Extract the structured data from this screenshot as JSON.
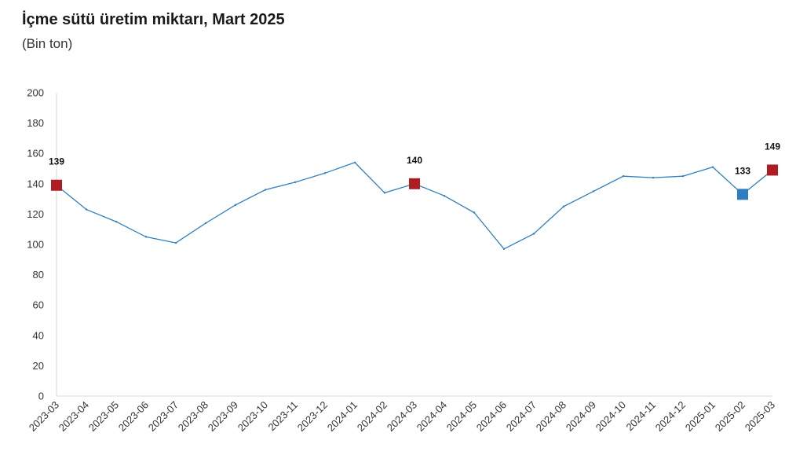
{
  "chart_data": {
    "type": "line",
    "title": "İçme sütü üretim miktarı, Mart 2025",
    "subtitle": "(Bin ton)",
    "categories": [
      "2023-03",
      "2023-04",
      "2023-05",
      "2023-06",
      "2023-07",
      "2023-08",
      "2023-09",
      "2023-10",
      "2023-11",
      "2023-12",
      "2024-01",
      "2024-02",
      "2024-03",
      "2024-04",
      "2024-05",
      "2024-06",
      "2024-07",
      "2024-08",
      "2024-09",
      "2024-10",
      "2024-11",
      "2024-12",
      "2025-01",
      "2025-02",
      "2025-03"
    ],
    "series": [
      {
        "values": [
          139,
          123,
          115,
          105,
          101,
          114,
          126,
          136,
          141,
          147,
          154,
          134,
          140,
          132,
          121,
          97,
          107,
          125,
          135,
          145,
          144,
          145,
          151,
          133,
          149
        ]
      }
    ],
    "ylim": [
      0,
      200
    ],
    "yticks": [
      0,
      20,
      40,
      60,
      80,
      100,
      120,
      140,
      160,
      180,
      200
    ],
    "grid": false,
    "highlights": [
      {
        "index": 0,
        "label": "139",
        "color": "#b01c24"
      },
      {
        "index": 12,
        "label": "140",
        "color": "#b01c24"
      },
      {
        "index": 23,
        "label": "133",
        "color": "#2e7fc0"
      },
      {
        "index": 24,
        "label": "149",
        "color": "#b01c24"
      }
    ],
    "line_color": "#2e7fc0"
  }
}
